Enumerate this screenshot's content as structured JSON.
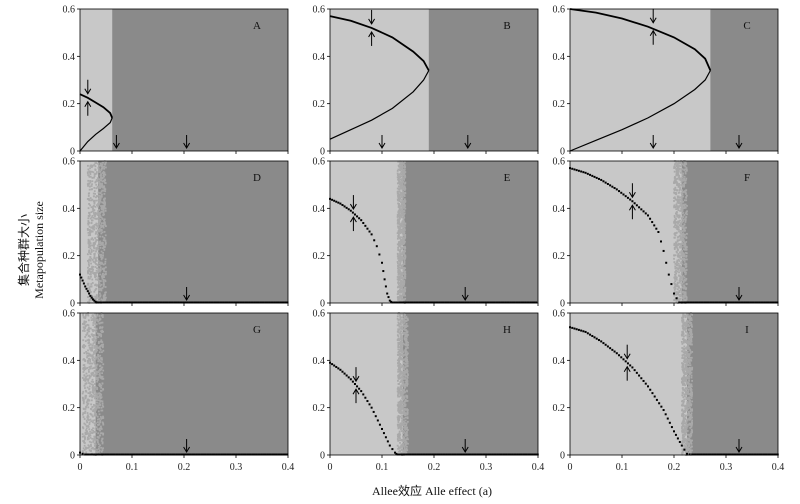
{
  "chart_data": {
    "type": "scatter",
    "xlabel": "Allee效应  Alle effect (a)",
    "ylabel_cn": "集合种群大小",
    "ylabel_en": "Metapopulation size",
    "xlim": [
      0,
      0.4
    ],
    "ylim": [
      0,
      0.6
    ],
    "xticks": [
      0,
      0.1,
      0.2,
      0.3,
      0.4
    ],
    "xtick_labels": [
      "0",
      "0.1",
      "0.2",
      "0.3",
      "0.4"
    ],
    "yticks": [
      0,
      0.2,
      0.4,
      0.6
    ],
    "ytick_labels": [
      "0",
      "0.2",
      "0.4",
      "0.6"
    ],
    "colors": {
      "light_region": "#c8c8c8",
      "dark_region": "#8a8a8a",
      "scatter": "#a9a9a9",
      "curve": "#000000"
    },
    "panels": [
      {
        "label": "A",
        "kind": "analytic",
        "light_until": 0.062,
        "stable": [
          [
            0,
            0.24
          ],
          [
            0.015,
            0.225
          ],
          [
            0.03,
            0.205
          ],
          [
            0.045,
            0.185
          ],
          [
            0.058,
            0.16
          ],
          [
            0.062,
            0.14
          ]
        ],
        "unstable": [
          [
            0,
            0
          ],
          [
            0.015,
            0.04
          ],
          [
            0.03,
            0.07
          ],
          [
            0.045,
            0.095
          ],
          [
            0.058,
            0.12
          ],
          [
            0.062,
            0.14
          ]
        ],
        "arrows": [
          [
            0.015,
            "pair"
          ],
          [
            0.07,
            "down"
          ],
          [
            0.205,
            "down"
          ]
        ]
      },
      {
        "label": "B",
        "kind": "analytic",
        "light_until": 0.19,
        "stable": [
          [
            0,
            0.57
          ],
          [
            0.04,
            0.55
          ],
          [
            0.08,
            0.52
          ],
          [
            0.12,
            0.48
          ],
          [
            0.16,
            0.42
          ],
          [
            0.18,
            0.38
          ],
          [
            0.19,
            0.34
          ]
        ],
        "unstable": [
          [
            0,
            0.05
          ],
          [
            0.04,
            0.09
          ],
          [
            0.08,
            0.13
          ],
          [
            0.12,
            0.18
          ],
          [
            0.16,
            0.25
          ],
          [
            0.18,
            0.3
          ],
          [
            0.19,
            0.34
          ]
        ],
        "arrows": [
          [
            0.08,
            "pair"
          ],
          [
            0.1,
            "down"
          ],
          [
            0.265,
            "down"
          ]
        ]
      },
      {
        "label": "C",
        "kind": "analytic",
        "light_until": 0.27,
        "stable": [
          [
            0,
            0.6
          ],
          [
            0.05,
            0.585
          ],
          [
            0.1,
            0.56
          ],
          [
            0.15,
            0.525
          ],
          [
            0.2,
            0.48
          ],
          [
            0.24,
            0.43
          ],
          [
            0.26,
            0.39
          ],
          [
            0.27,
            0.34
          ]
        ],
        "unstable": [
          [
            0,
            0
          ],
          [
            0.05,
            0.045
          ],
          [
            0.1,
            0.09
          ],
          [
            0.15,
            0.14
          ],
          [
            0.2,
            0.2
          ],
          [
            0.24,
            0.26
          ],
          [
            0.26,
            0.3
          ],
          [
            0.27,
            0.34
          ]
        ],
        "arrows": [
          [
            0.16,
            "pair"
          ],
          [
            0.16,
            "down"
          ],
          [
            0.325,
            "down"
          ]
        ]
      },
      {
        "label": "D",
        "kind": "simulation",
        "light_until": 0.035,
        "scatter_band": [
          0.015,
          0.05
        ],
        "points": [
          [
            0,
            0.12
          ],
          [
            0.005,
            0.095
          ],
          [
            0.01,
            0.07
          ],
          [
            0.015,
            0.05
          ],
          [
            0.02,
            0.03
          ],
          [
            0.025,
            0.015
          ],
          [
            0.03,
            0.005
          ],
          [
            0.035,
            0
          ]
        ],
        "arrows": [
          [
            0.205,
            "down"
          ]
        ]
      },
      {
        "label": "E",
        "kind": "simulation",
        "light_until": 0.14,
        "scatter_band": [
          0.13,
          0.145
        ],
        "points": [
          [
            0,
            0.44
          ],
          [
            0.02,
            0.42
          ],
          [
            0.04,
            0.39
          ],
          [
            0.06,
            0.35
          ],
          [
            0.08,
            0.29
          ],
          [
            0.09,
            0.24
          ],
          [
            0.1,
            0.17
          ],
          [
            0.105,
            0.1
          ],
          [
            0.11,
            0.04
          ],
          [
            0.115,
            0.01
          ],
          [
            0.12,
            0
          ]
        ],
        "arrows": [
          [
            0.045,
            "pair"
          ],
          [
            0.26,
            "down"
          ]
        ]
      },
      {
        "label": "F",
        "kind": "simulation",
        "light_until": 0.215,
        "scatter_band": [
          0.2,
          0.225
        ],
        "points": [
          [
            0,
            0.57
          ],
          [
            0.03,
            0.55
          ],
          [
            0.06,
            0.52
          ],
          [
            0.09,
            0.48
          ],
          [
            0.12,
            0.43
          ],
          [
            0.15,
            0.37
          ],
          [
            0.17,
            0.3
          ],
          [
            0.18,
            0.22
          ],
          [
            0.19,
            0.12
          ],
          [
            0.2,
            0.04
          ],
          [
            0.21,
            0
          ]
        ],
        "arrows": [
          [
            0.12,
            "pair"
          ],
          [
            0.325,
            "down"
          ]
        ]
      },
      {
        "label": "G",
        "kind": "simulation",
        "light_until": 0.03,
        "scatter_band": [
          0.005,
          0.045
        ],
        "points": [
          [
            0,
            0.01
          ],
          [
            0.01,
            0
          ]
        ],
        "arrows": [
          [
            0.205,
            "down"
          ]
        ]
      },
      {
        "label": "H",
        "kind": "simulation",
        "light_until": 0.14,
        "scatter_band": [
          0.13,
          0.15
        ],
        "points": [
          [
            0,
            0.39
          ],
          [
            0.02,
            0.36
          ],
          [
            0.04,
            0.32
          ],
          [
            0.06,
            0.27
          ],
          [
            0.08,
            0.2
          ],
          [
            0.1,
            0.11
          ],
          [
            0.115,
            0.04
          ],
          [
            0.125,
            0.01
          ],
          [
            0.13,
            0
          ]
        ],
        "arrows": [
          [
            0.05,
            "pair"
          ],
          [
            0.26,
            "down"
          ]
        ]
      },
      {
        "label": "I",
        "kind": "simulation",
        "light_until": 0.225,
        "scatter_band": [
          0.215,
          0.235
        ],
        "points": [
          [
            0,
            0.54
          ],
          [
            0.03,
            0.52
          ],
          [
            0.06,
            0.48
          ],
          [
            0.09,
            0.43
          ],
          [
            0.12,
            0.37
          ],
          [
            0.15,
            0.29
          ],
          [
            0.18,
            0.19
          ],
          [
            0.2,
            0.1
          ],
          [
            0.215,
            0.04
          ],
          [
            0.225,
            0.005
          ],
          [
            0.235,
            0
          ]
        ],
        "arrows": [
          [
            0.11,
            "pair"
          ],
          [
            0.325,
            "down"
          ]
        ]
      }
    ]
  }
}
